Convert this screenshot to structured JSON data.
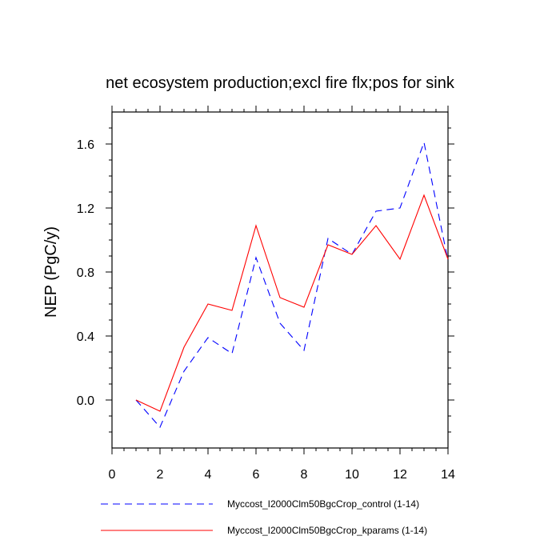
{
  "chart_data": {
    "type": "line",
    "title": "net ecosystem production;excl fire flx;pos for sink",
    "xlabel": "",
    "ylabel": "NEP  (PgC/y)",
    "xlim": [
      0,
      14
    ],
    "ylim": [
      -0.3,
      1.8
    ],
    "xticks": [
      "0",
      "2",
      "4",
      "6",
      "8",
      "10",
      "12",
      "14"
    ],
    "yticks": [
      "0.0",
      "0.4",
      "0.8",
      "1.2",
      "1.6"
    ],
    "x": [
      1,
      2,
      3,
      4,
      5,
      6,
      7,
      8,
      9,
      10,
      11,
      12,
      13,
      14
    ],
    "series": [
      {
        "name": "Myccost_I2000Clm50BgcCrop_control (1-14)",
        "color": "#0000ff",
        "dash": "dashed",
        "values": [
          0.0,
          -0.17,
          0.18,
          0.39,
          0.29,
          0.89,
          0.48,
          0.31,
          1.01,
          0.91,
          1.18,
          1.2,
          1.61,
          0.87
        ]
      },
      {
        "name": "Myccost_I2000Clm50BgcCrop_kparams (1-14)",
        "color": "#ff0000",
        "dash": "solid",
        "values": [
          0.0,
          -0.07,
          0.33,
          0.6,
          0.56,
          1.09,
          0.64,
          0.58,
          0.97,
          0.91,
          1.09,
          0.88,
          1.28,
          0.88
        ]
      }
    ],
    "grid": false,
    "legend": "bottom"
  }
}
